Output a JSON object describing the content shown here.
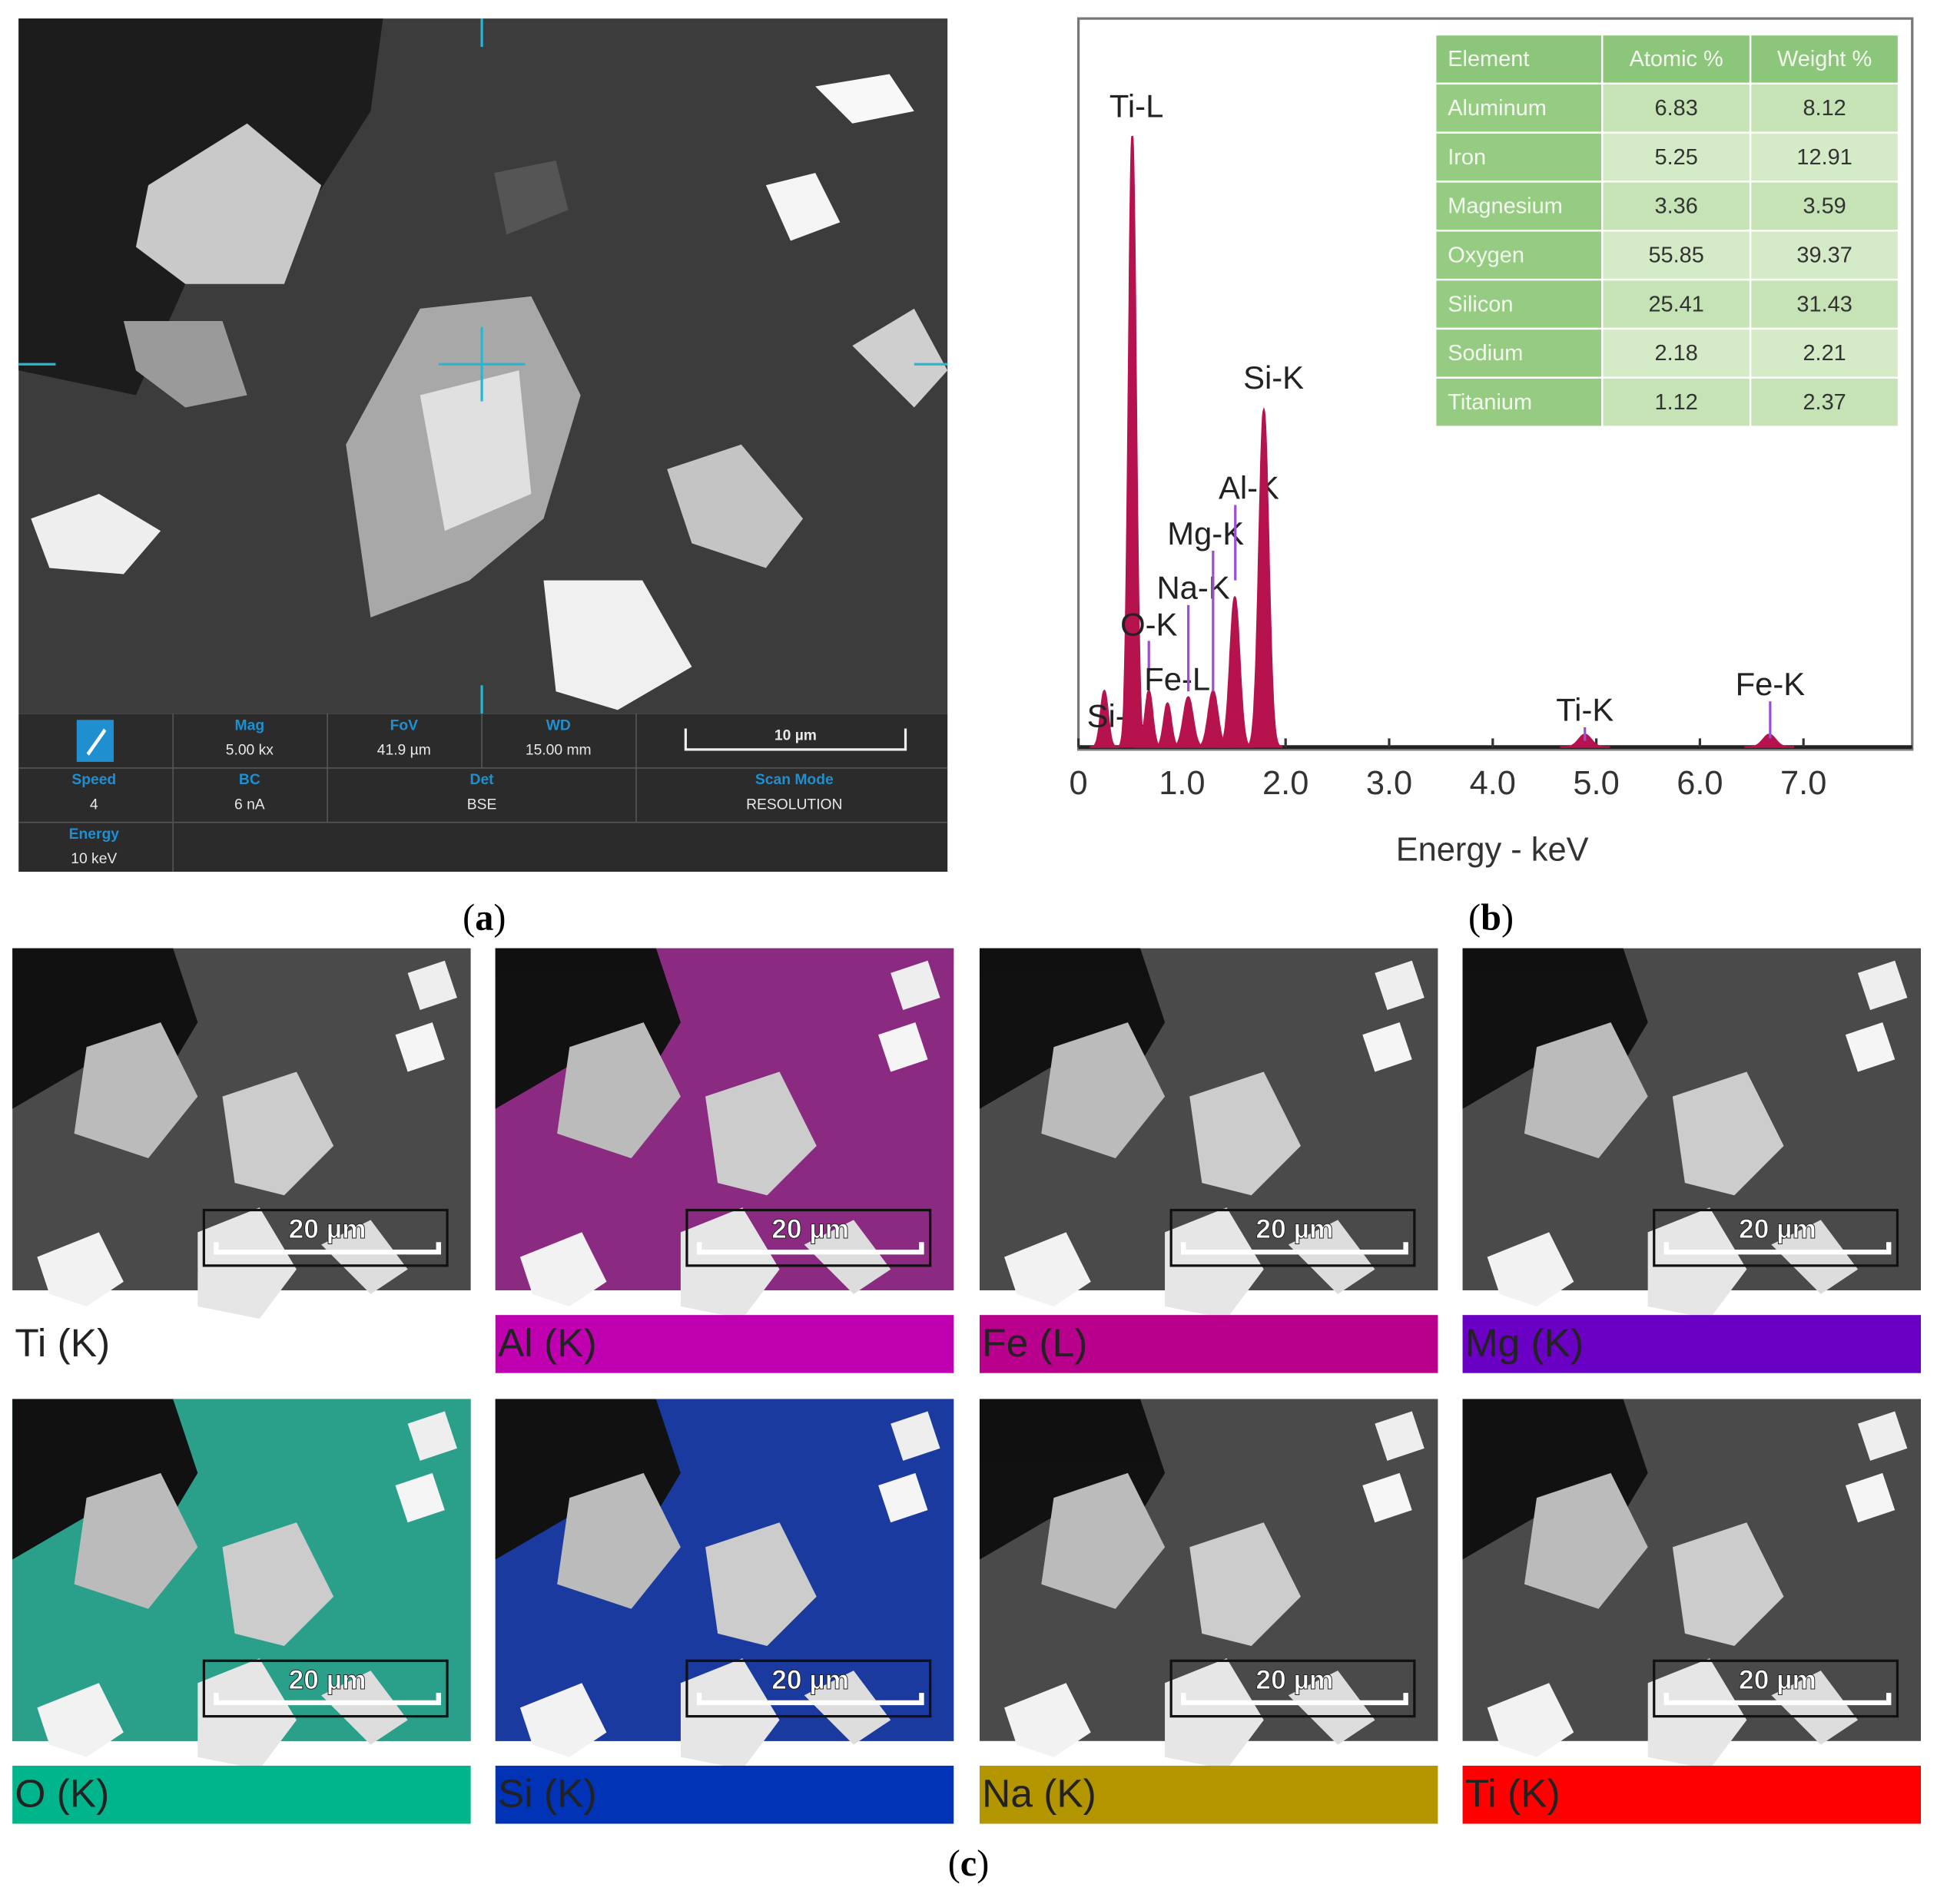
{
  "panel_a": {
    "info": [
      {
        "label": "Mag",
        "value": "5.00 kx"
      },
      {
        "label": "FoV",
        "value": "41.9 µm"
      },
      {
        "label": "WD",
        "value": "15.00 mm"
      },
      {
        "label": "Speed",
        "value": "4"
      },
      {
        "label": "BC",
        "value": "6 nA"
      },
      {
        "label": "Det",
        "value": "BSE"
      },
      {
        "label": "Scan Mode",
        "value": "RESOLUTION"
      },
      {
        "label": "Energy",
        "value": "10 keV"
      }
    ],
    "scale_bar": "10 µm",
    "caption": "a"
  },
  "chart_data": {
    "type": "spectrum",
    "xlabel": "Energy - keV",
    "xlim": [
      0,
      8.05
    ],
    "ylim": [
      0,
      100
    ],
    "xticks": [
      0,
      {
        "value": 1,
        "label": "1.0"
      },
      {
        "value": 2,
        "label": "2.0"
      },
      {
        "value": 3,
        "label": "3.0"
      },
      {
        "value": 4,
        "label": "4.0"
      },
      {
        "value": 5,
        "label": "5.0"
      },
      {
        "value": 6,
        "label": "6.0"
      },
      {
        "value": 7,
        "label": "7.0"
      }
    ],
    "color": "#b5124e",
    "peaks": {
      "labels": [
        "Si-L",
        "Ti-L",
        "O-K",
        "Fe-L",
        "Na-K",
        "Mg-K",
        "Al-K",
        "Si-K",
        "Ti-K",
        "Fe-K"
      ],
      "energy": [
        0.25,
        0.52,
        0.68,
        0.86,
        1.06,
        1.3,
        1.51,
        1.79,
        4.89,
        6.67
      ],
      "height": [
        9,
        98,
        9,
        7,
        8,
        9,
        24,
        54,
        2,
        2
      ]
    },
    "caption": "b"
  },
  "table": {
    "header": [
      "Element",
      "Atomic %",
      "Weight %"
    ],
    "rows": [
      [
        "Aluminum",
        6.83,
        8.12
      ],
      [
        "Iron",
        5.25,
        12.91
      ],
      [
        "Magnesium",
        3.36,
        3.59
      ],
      [
        "Oxygen",
        55.85,
        39.37
      ],
      [
        "Silicon",
        25.41,
        31.43
      ],
      [
        "Sodium",
        2.18,
        2.21
      ],
      [
        "Titanium",
        1.12,
        2.37
      ]
    ]
  },
  "panel_c": {
    "scale_bar": "20 µm",
    "caption": "c",
    "maps": [
      {
        "label": "Ti (K)"
      },
      {
        "label": "Al (K)",
        "color": "#c000b0"
      },
      {
        "label": "Fe (L)",
        "color": "#b8008c"
      },
      {
        "label": "Mg (K)",
        "color": "#6a00c4"
      },
      {
        "label": "O (K)",
        "color": "#00b48c"
      },
      {
        "label": "Si (K)",
        "color": "#0033b5"
      },
      {
        "label": "Na (K)",
        "color": "#b39500"
      },
      {
        "label": "Ti (K)",
        "color": "#ff0000"
      }
    ]
  }
}
